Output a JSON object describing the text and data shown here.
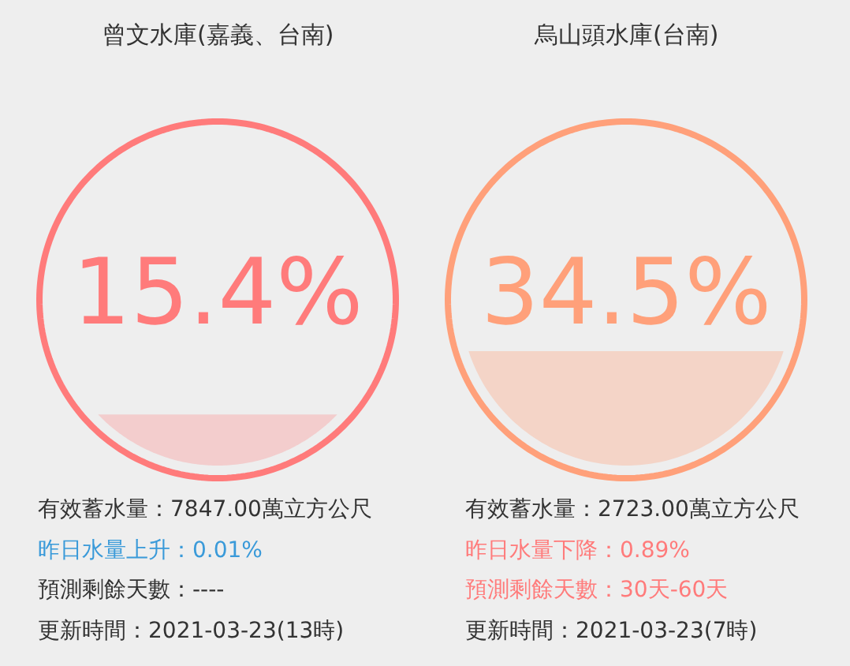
{
  "chart_data": [
    {
      "type": "other",
      "title": "曾文水庫(嘉義、台南)",
      "values": [
        15.4
      ],
      "value_labels": [
        "15.4%"
      ],
      "color": "#ff7b7b",
      "annotations": [
        "有效蓄水量：7847.00萬立方公尺",
        "昨日水量上升：0.01%",
        "預測剩餘天數：----",
        "更新時間：2021-03-23(13時)"
      ]
    },
    {
      "type": "other",
      "title": "烏山頭水庫(台南)",
      "values": [
        34.5
      ],
      "value_labels": [
        "34.5%"
      ],
      "color": "#ffa07a",
      "annotations": [
        "有效蓄水量：2723.00萬立方公尺",
        "昨日水量下降：0.89%",
        "預測剩餘天數：30天-60天",
        "更新時間：2021-03-23(7時)"
      ]
    }
  ]
}
